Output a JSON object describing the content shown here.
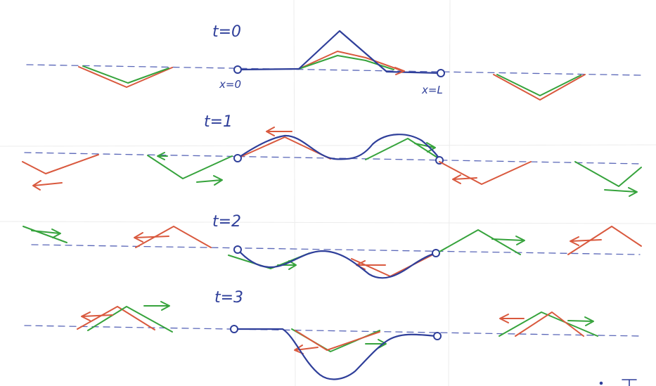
{
  "labels": {
    "t0": "t=0",
    "t1": "t=1",
    "t2": "t=2",
    "t3": "t=3",
    "x_start": "x=0",
    "x_end": "x=L"
  },
  "colors": {
    "paper": "#ffffff",
    "ink_blue": "#2f3f9a",
    "axis_blue": "#5a67b8",
    "red": "#d9593e",
    "green": "#36a33c"
  }
}
